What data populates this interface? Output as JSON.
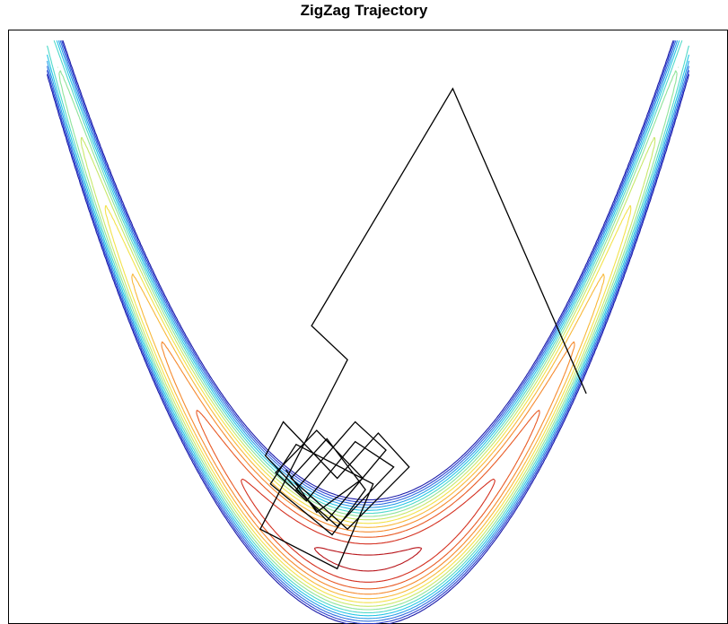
{
  "chart_data": {
    "type": "contour",
    "title": "ZigZag Trajectory",
    "xlabel": "",
    "ylabel": "",
    "contour_levels": 14,
    "contour_colormap": [
      "#1a1aa8",
      "#2a3fd0",
      "#2f6ee0",
      "#2a9ee8",
      "#25c6e6",
      "#4fd9c9",
      "#8fe39a",
      "#c8e86a",
      "#f3e24a",
      "#f8b83a",
      "#f58a2e",
      "#e85a25",
      "#d43020",
      "#b8141a"
    ],
    "trajectory_color": "#000000",
    "trajectory": [
      [
        0.85,
        0.6
      ],
      [
        0.33,
        1.68
      ],
      [
        -0.22,
        0.84
      ],
      [
        -0.08,
        0.72
      ],
      [
        -0.42,
        0.12
      ],
      [
        -0.12,
        -0.02
      ],
      [
        0.02,
        0.28
      ],
      [
        -0.28,
        0.42
      ],
      [
        -0.38,
        0.28
      ],
      [
        -0.14,
        0.1
      ],
      [
        -0.01,
        0.26
      ],
      [
        -0.16,
        0.44
      ],
      [
        -0.3,
        0.3
      ],
      [
        -0.08,
        0.12
      ],
      [
        0.16,
        0.34
      ],
      [
        0.04,
        0.46
      ],
      [
        -0.12,
        0.3
      ],
      [
        -0.33,
        0.5
      ],
      [
        -0.4,
        0.38
      ],
      [
        -0.16,
        0.15
      ],
      [
        0.07,
        0.4
      ],
      [
        -0.05,
        0.5
      ],
      [
        -0.28,
        0.26
      ],
      [
        -0.12,
        0.13
      ],
      [
        0.1,
        0.34
      ],
      [
        -0.05,
        0.43
      ],
      [
        -0.24,
        0.22
      ],
      [
        -0.36,
        0.32
      ],
      [
        -0.2,
        0.47
      ],
      [
        -0.02,
        0.3
      ],
      [
        -0.2,
        0.18
      ],
      [
        -0.32,
        0.33
      ]
    ]
  }
}
